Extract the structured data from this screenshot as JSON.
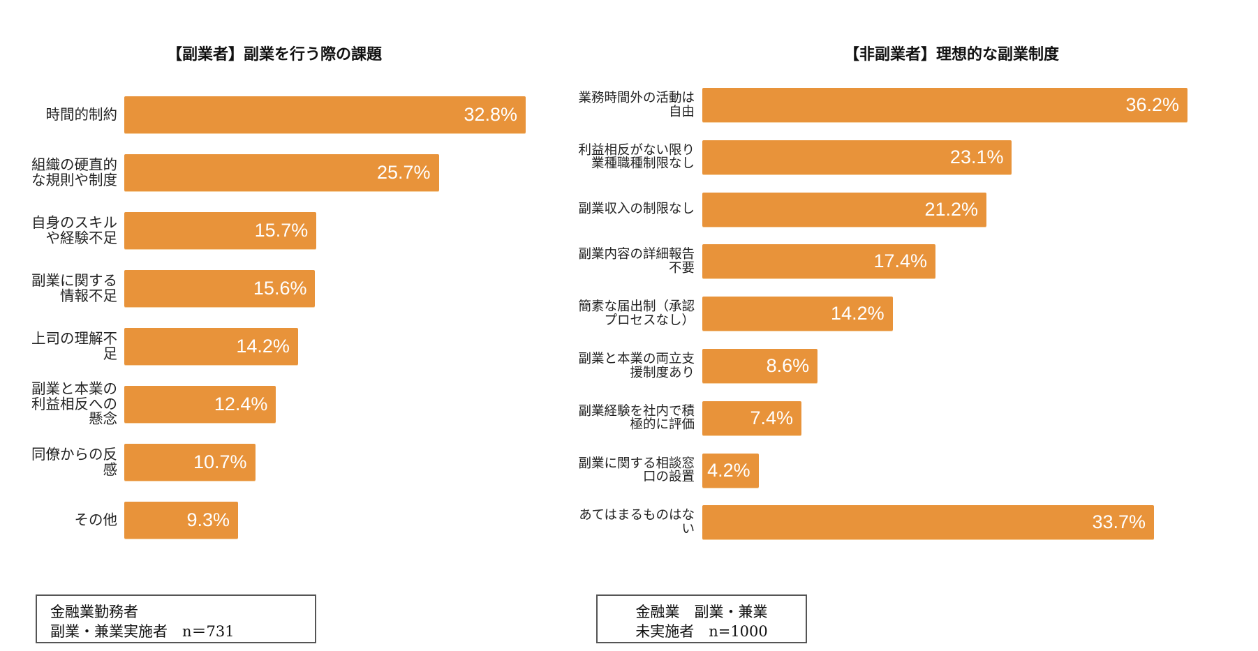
{
  "chart_data": [
    {
      "type": "bar",
      "orientation": "horizontal",
      "title": "【副業者】副業を行う際の課題",
      "categories": [
        "時間的制約",
        "組織の硬直的な規則や制度",
        "自身のスキルや経験不足",
        "副業に関する情報不足",
        "上司の理解不足",
        "副業と本業の利益相反への懸念",
        "同僚からの反感",
        "その他"
      ],
      "values": [
        32.8,
        25.7,
        15.7,
        15.6,
        14.2,
        12.4,
        10.7,
        9.3
      ],
      "data_labels": [
        "32.8%",
        "25.7%",
        "15.7%",
        "15.6%",
        "14.2%",
        "12.4%",
        "10.7%",
        "9.3%"
      ],
      "unit": "%",
      "grid": false,
      "axis_visible": false,
      "color": "#E8933A",
      "note_lines": [
        "金融業勤務者",
        "副業・兼業実施者　n＝731"
      ]
    },
    {
      "type": "bar",
      "orientation": "horizontal",
      "title": "【非副業者】理想的な副業制度",
      "categories": [
        "業務時間外の活動は自由",
        "利益相反がない限り業種職種制限なし",
        "副業収入の制限なし",
        "副業内容の詳細報告不要",
        "簡素な届出制（承認プロセスなし）",
        "副業と本業の両立支援制度あり",
        "副業経験を社内で積極的に評価",
        "副業に関する相談窓口の設置",
        "あてはまるものはない"
      ],
      "values": [
        36.2,
        23.1,
        21.2,
        17.4,
        14.2,
        8.6,
        7.4,
        4.2,
        33.7
      ],
      "data_labels": [
        "36.2%",
        "23.1%",
        "21.2%",
        "17.4%",
        "14.2%",
        "8.6%",
        "7.4%",
        "4.2%",
        "33.7%"
      ],
      "unit": "%",
      "grid": false,
      "axis_visible": false,
      "color": "#E8933A",
      "note_lines": [
        "金融業　副業・兼業",
        "未実施者　n=1000"
      ]
    }
  ]
}
